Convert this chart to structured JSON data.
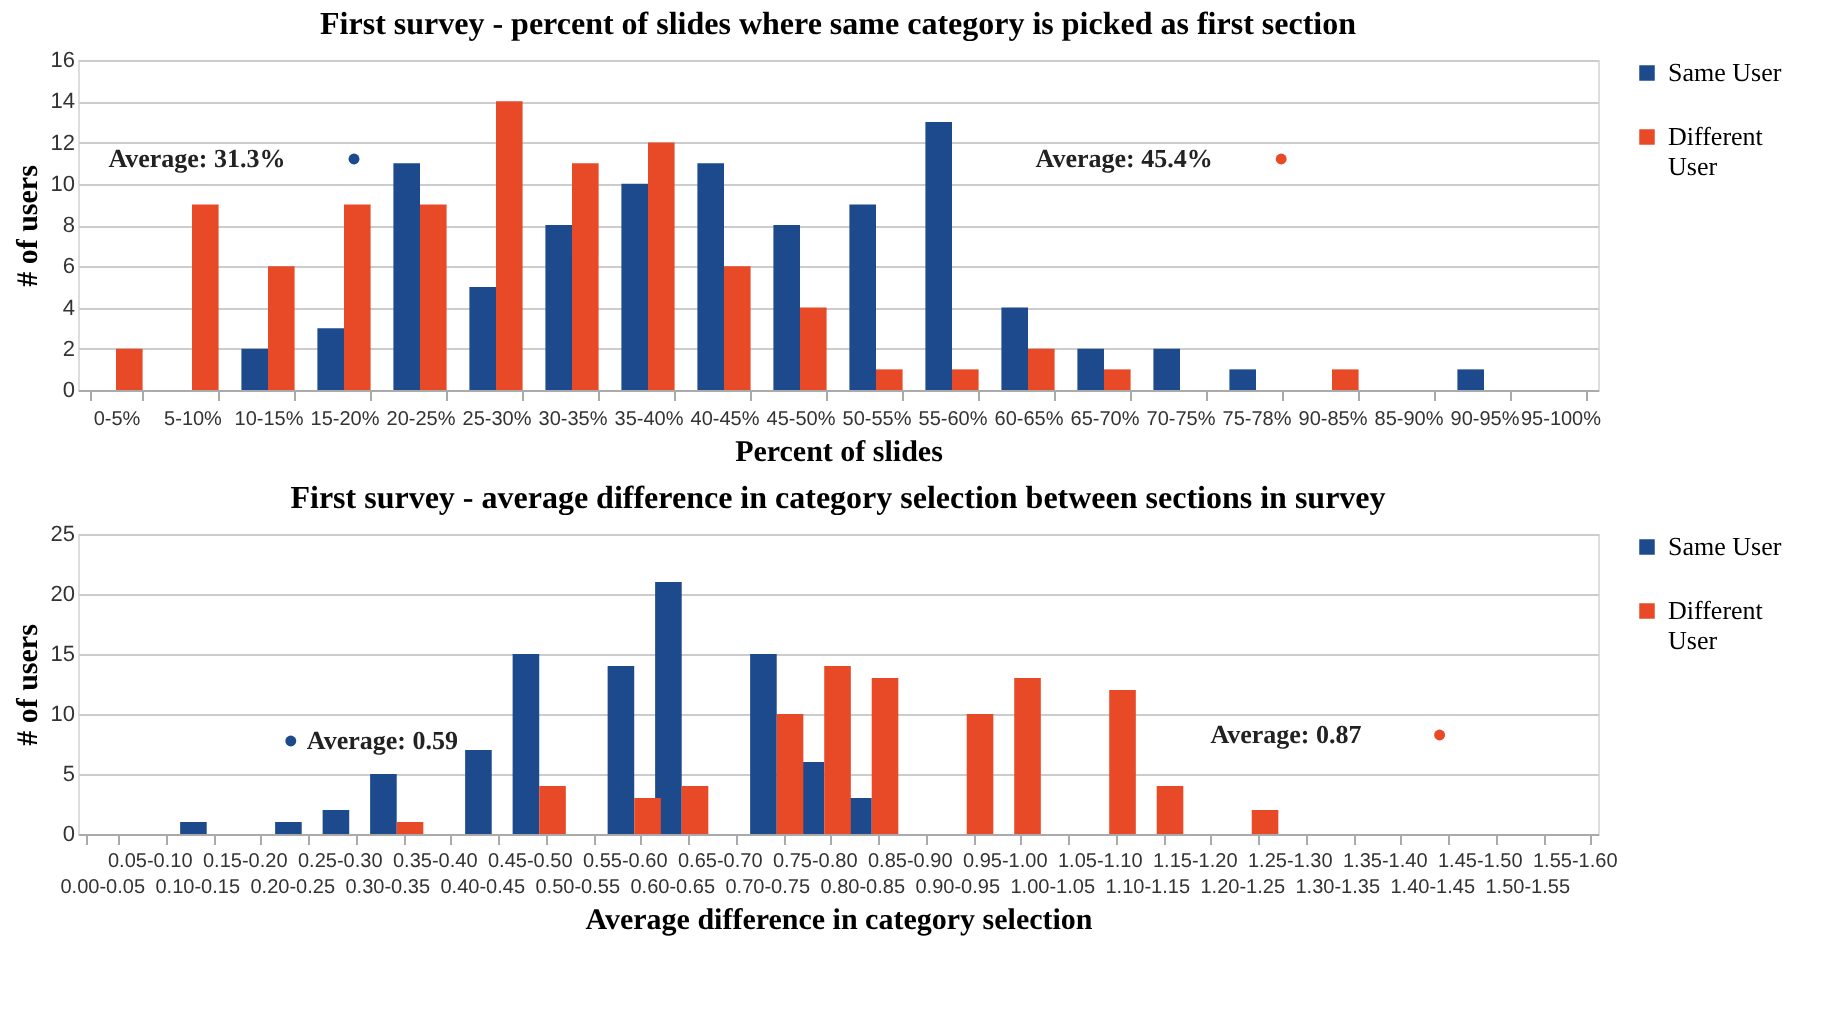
{
  "chart_data": [
    {
      "type": "bar",
      "title": "First survey - percent of slides where same category is picked as first section",
      "xlabel": "Percent of slides",
      "ylabel": "# of users",
      "categories": [
        "0-5%",
        "5-10%",
        "10-15%",
        "15-20%",
        "20-25%",
        "25-30%",
        "30-35%",
        "35-40%",
        "40-45%",
        "45-50%",
        "50-55%",
        "55-60%",
        "60-65%",
        "65-70%",
        "70-75%",
        "75-78%",
        "90-85%",
        "85-90%",
        "90-95%",
        "95-100%"
      ],
      "series": [
        {
          "name": "Same User",
          "color": "#1c4a8c",
          "values": [
            0,
            0,
            2,
            3,
            11,
            5,
            8,
            10,
            11,
            8,
            9,
            13,
            4,
            2,
            2,
            1,
            0,
            0,
            1,
            0
          ]
        },
        {
          "name": "Different User",
          "color": "#e84a27",
          "values": [
            2,
            9,
            6,
            9,
            9,
            14,
            11,
            12,
            6,
            4,
            1,
            1,
            2,
            1,
            0,
            0,
            1,
            0,
            0,
            0
          ]
        }
      ],
      "ylim": [
        0,
        16
      ],
      "yticks": [
        0,
        2,
        4,
        6,
        8,
        10,
        12,
        14,
        16
      ],
      "grid": "y",
      "legend": "right",
      "annotations": [
        "Average: 31.3%",
        "Average: 45.4%"
      ]
    },
    {
      "type": "bar",
      "title": "First survey - average difference in category selection between sections in survey",
      "xlabel": "Average difference in category selection",
      "ylabel": "# of users",
      "categories": [
        "0.00-0.05",
        "0.05-0.10",
        "0.10-0.15",
        "0.15-0.20",
        "0.20-0.25",
        "0.25-0.30",
        "0.30-0.35",
        "0.35-0.40",
        "0.40-0.45",
        "0.45-0.50",
        "0.50-0.55",
        "0.55-0.60",
        "0.60-0.65",
        "0.65-0.70",
        "0.70-0.75",
        "0.75-0.80",
        "0.80-0.85",
        "0.85-0.90",
        "0.90-0.95",
        "0.95-1.00",
        "1.00-1.05",
        "1.05-1.10",
        "1.10-1.15",
        "1.15-1.20",
        "1.20-1.25",
        "1.25-1.30",
        "1.30-1.35",
        "1.35-1.40",
        "1.40-1.45",
        "1.45-1.50",
        "1.50-1.55",
        "1.55-1.60"
      ],
      "series": [
        {
          "name": "Same User",
          "color": "#1c4a8c",
          "values": [
            0,
            0,
            1,
            0,
            1,
            2,
            5,
            0,
            7,
            15,
            0,
            14,
            21,
            0,
            15,
            6,
            3,
            0,
            0,
            0,
            0,
            0,
            0,
            0,
            0,
            0,
            0,
            0,
            0,
            0,
            0,
            0
          ]
        },
        {
          "name": "Different User",
          "color": "#e84a27",
          "values": [
            0,
            0,
            0,
            0,
            0,
            0,
            1,
            0,
            0,
            4,
            0,
            3,
            4,
            0,
            10,
            14,
            13,
            0,
            10,
            13,
            0,
            12,
            4,
            0,
            2,
            0,
            0,
            0,
            0,
            0,
            0,
            0
          ]
        }
      ],
      "ylim": [
        0,
        25
      ],
      "yticks": [
        0,
        5,
        10,
        15,
        20,
        25
      ],
      "grid": "y",
      "legend": "right",
      "annotations": [
        "Average: 0.59",
        "Average: 0.87"
      ]
    }
  ]
}
